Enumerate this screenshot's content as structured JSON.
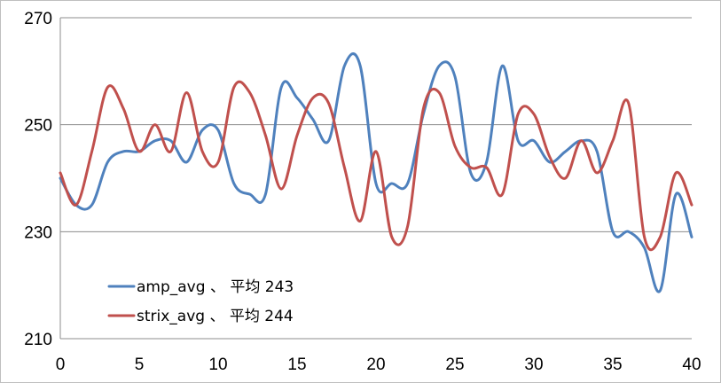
{
  "chart_data": {
    "type": "line",
    "title": "",
    "xlabel": "",
    "ylabel": "",
    "xlim": [
      0,
      40
    ],
    "ylim": [
      210,
      270
    ],
    "x_ticks": [
      "0",
      "5",
      "10",
      "15",
      "20",
      "25",
      "30",
      "35",
      "40"
    ],
    "y_ticks": [
      "210",
      "230",
      "250",
      "270"
    ],
    "grid": "horizontal",
    "legend_position": "bottom-left",
    "x": [
      0,
      1,
      2,
      3,
      4,
      5,
      6,
      7,
      8,
      9,
      10,
      11,
      12,
      13,
      14,
      15,
      16,
      17,
      18,
      19,
      20,
      21,
      22,
      23,
      24,
      25,
      26,
      27,
      28,
      29,
      30,
      31,
      32,
      33,
      34,
      35,
      36,
      37,
      38,
      39,
      40
    ],
    "series": [
      {
        "name": "amp_avg 、 平均 243",
        "color": "#4f81bd",
        "values": [
          240,
          235,
          235,
          243,
          245,
          245,
          247,
          247,
          243,
          249,
          249,
          239,
          237,
          237,
          257,
          255,
          251,
          247,
          261,
          261,
          239,
          239,
          239,
          252,
          261,
          259,
          241,
          243,
          261,
          247,
          247,
          243,
          245,
          247,
          245,
          230,
          230,
          227,
          219,
          237,
          229
        ]
      },
      {
        "name": "strix_avg 、 平均 244",
        "color": "#c0504d",
        "values": [
          241,
          235,
          245,
          257,
          253,
          245,
          250,
          245,
          256,
          245,
          243,
          257,
          256,
          248,
          238,
          248,
          255,
          254,
          242,
          232,
          245,
          229,
          231,
          253,
          256,
          246,
          242,
          242,
          237,
          252,
          252,
          244,
          240,
          247,
          241,
          247,
          254,
          229,
          229,
          241,
          235
        ]
      }
    ]
  }
}
